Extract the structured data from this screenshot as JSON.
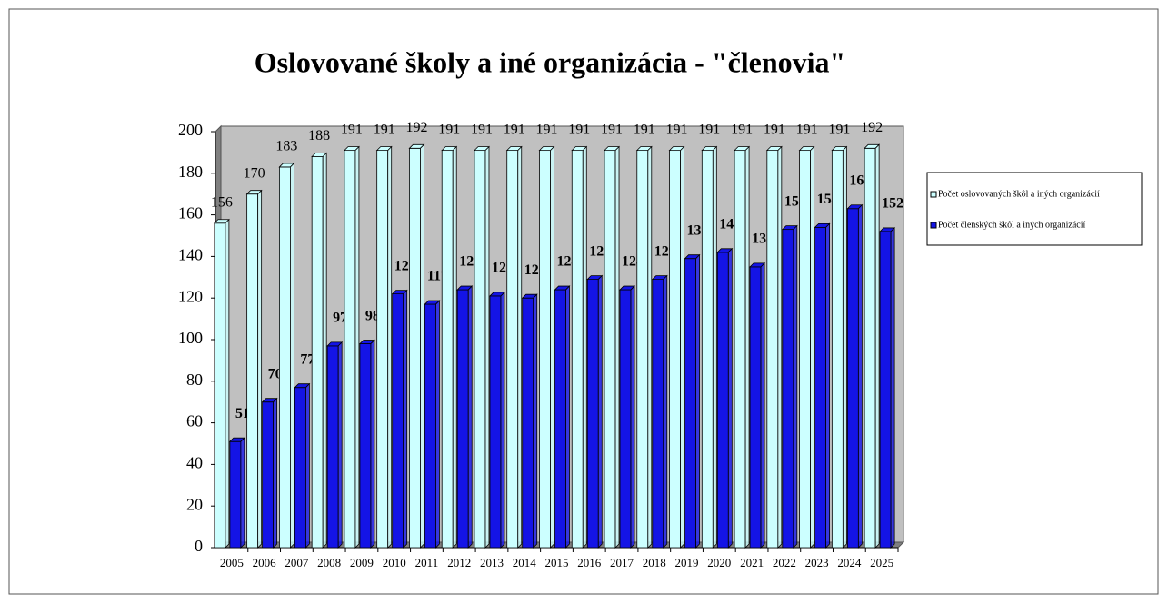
{
  "chart_data": {
    "type": "bar3d",
    "title": "Oslovované školy a iné organizácia - \"členovia\"",
    "categories": [
      "2005",
      "2006",
      "2007",
      "2008",
      "2009",
      "2010",
      "2011",
      "2012",
      "2013",
      "2014",
      "2015",
      "2016",
      "2017",
      "2018",
      "2019",
      "2020",
      "2021",
      "2022",
      "2023",
      "2024",
      "2025"
    ],
    "series": [
      {
        "name": "Počet oslovovaných škôl a iných organizácií",
        "color": "#ccffff",
        "values": [
          156,
          170,
          183,
          188,
          191,
          191,
          192,
          191,
          191,
          191,
          191,
          191,
          191,
          191,
          191,
          191,
          191,
          191,
          191,
          191,
          192
        ]
      },
      {
        "name": "Počet členských škôl a iných organizácií",
        "color": "#1414e6",
        "values": [
          51,
          70,
          77,
          97,
          98,
          122,
          117,
          124,
          121,
          120,
          124,
          129,
          124,
          129,
          139,
          142,
          135,
          153,
          154,
          163,
          152
        ]
      }
    ],
    "ylim": [
      0,
      200
    ],
    "yticks": [
      0,
      20,
      40,
      60,
      80,
      100,
      120,
      140,
      160,
      180,
      200
    ],
    "wall_color": "#c0c0c0",
    "legend": "right"
  }
}
